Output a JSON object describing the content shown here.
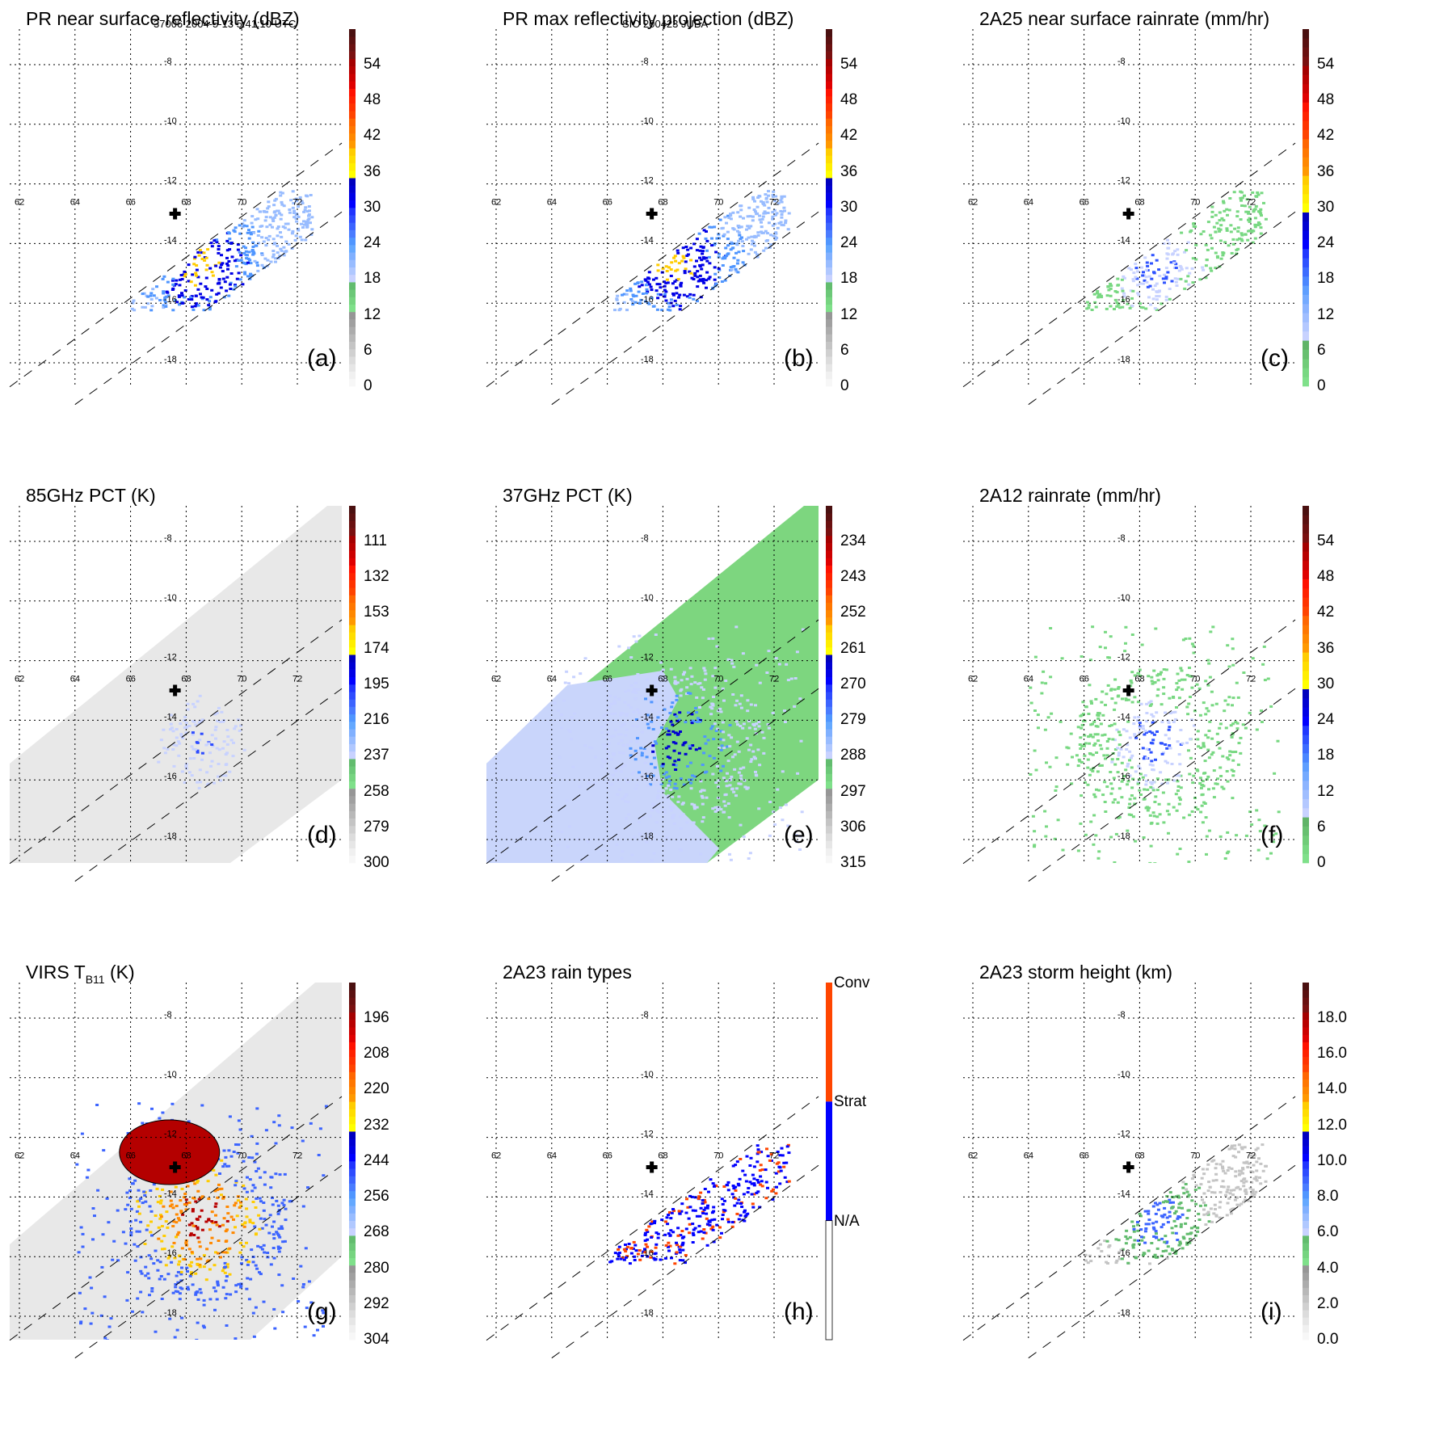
{
  "header": {
    "left": "37006 2004-5-13 5:41:10 UTC",
    "center": "SIO 200423 JUBA"
  },
  "chart_data": [
    {
      "id": "a",
      "type": "heatmap",
      "title": "PR near surface reflectivity (dBZ)",
      "panel_label": "(a)",
      "field": "reflectivity",
      "contours": false,
      "background": "white",
      "swath": "PR",
      "colorbar": {
        "ticks": [
          "54",
          "48",
          "42",
          "36",
          "30",
          "24",
          "18",
          "12",
          "6",
          "0"
        ],
        "range": [
          0,
          60
        ],
        "scheme": "dbz"
      },
      "xlabels": [
        "62",
        "64",
        "66",
        "68",
        "70",
        "72"
      ],
      "ylabels": [
        "-8",
        "-10",
        "-12",
        "-14",
        "-16",
        "-18"
      ]
    },
    {
      "id": "b",
      "type": "heatmap",
      "title": "PR max reflectivity projection (dBZ)",
      "panel_label": "(b)",
      "field": "reflectivity",
      "contours": true,
      "background": "white",
      "swath": "PR",
      "colorbar": {
        "ticks": [
          "54",
          "48",
          "42",
          "36",
          "30",
          "24",
          "18",
          "12",
          "6",
          "0"
        ],
        "range": [
          0,
          60
        ],
        "scheme": "dbz"
      },
      "xlabels": [
        "62",
        "64",
        "66",
        "68",
        "70",
        "72"
      ],
      "ylabels": [
        "-8",
        "-10",
        "-12",
        "-14",
        "-16",
        "-18"
      ]
    },
    {
      "id": "c",
      "type": "heatmap",
      "title": "2A25 near surface rainrate (mm/hr)",
      "panel_label": "(c)",
      "field": "rainrate",
      "contours": true,
      "background": "white",
      "swath": "PR",
      "colorbar": {
        "ticks": [
          "54",
          "48",
          "42",
          "36",
          "30",
          "24",
          "18",
          "12",
          "6",
          "0"
        ],
        "range": [
          0,
          60
        ],
        "scheme": "rain"
      },
      "xlabels": [
        "62",
        "64",
        "66",
        "68",
        "70",
        "72"
      ],
      "ylabels": [
        "-8",
        "-10",
        "-12",
        "-14",
        "-16",
        "-18"
      ]
    },
    {
      "id": "d",
      "type": "heatmap",
      "title": "85GHz PCT (K)",
      "panel_label": "(d)",
      "field": "pct85",
      "contours": true,
      "background": "gray-swath",
      "swath": "TMI",
      "colorbar": {
        "ticks": [
          "111",
          "132",
          "153",
          "174",
          "195",
          "216",
          "237",
          "258",
          "279",
          "300"
        ],
        "range": [
          90,
          300
        ],
        "scheme": "dbz"
      },
      "xlabels": [
        "62",
        "64",
        "66",
        "68",
        "70",
        "72"
      ],
      "ylabels": [
        "-8",
        "-10",
        "-12",
        "-14",
        "-16",
        "-18"
      ]
    },
    {
      "id": "e",
      "type": "heatmap",
      "title": "37GHz PCT (K)",
      "panel_label": "(e)",
      "field": "pct37",
      "contours": false,
      "background": "green-swath",
      "swath": "TMI",
      "colorbar": {
        "ticks": [
          "234",
          "243",
          "252",
          "261",
          "270",
          "279",
          "288",
          "297",
          "306",
          "315"
        ],
        "range": [
          225,
          315
        ],
        "scheme": "dbz"
      },
      "xlabels": [
        "62",
        "64",
        "66",
        "68",
        "70",
        "72"
      ],
      "ylabels": [
        "-8",
        "-10",
        "-12",
        "-14",
        "-16",
        "-18"
      ]
    },
    {
      "id": "f",
      "type": "heatmap",
      "title": "2A12 rainrate (mm/hr)",
      "panel_label": "(f)",
      "field": "rain2a12",
      "contours": true,
      "background": "white",
      "swath": "TMI",
      "colorbar": {
        "ticks": [
          "54",
          "48",
          "42",
          "36",
          "30",
          "24",
          "18",
          "12",
          "6",
          "0"
        ],
        "range": [
          0,
          60
        ],
        "scheme": "rain"
      },
      "xlabels": [
        "62",
        "64",
        "66",
        "68",
        "70",
        "72"
      ],
      "ylabels": [
        "-8",
        "-10",
        "-12",
        "-14",
        "-16",
        "-18"
      ]
    },
    {
      "id": "g",
      "type": "heatmap",
      "title": "VIRS T",
      "title_sub": "B11",
      "title_suffix": " (K)",
      "panel_label": "(g)",
      "field": "virs",
      "contours": true,
      "background": "gray-swath",
      "swath": "VIRS",
      "colorbar": {
        "ticks": [
          "196",
          "208",
          "220",
          "232",
          "244",
          "256",
          "268",
          "280",
          "292",
          "304"
        ],
        "range": [
          184,
          304
        ],
        "scheme": "dbz"
      },
      "xlabels": [
        "62",
        "64",
        "66",
        "68",
        "70",
        "72"
      ],
      "ylabels": [
        "-8",
        "-10",
        "-12",
        "-14",
        "-16",
        "-18"
      ]
    },
    {
      "id": "h",
      "type": "heatmap",
      "title": "2A23 rain types",
      "panel_label": "(h)",
      "field": "raintype",
      "contours": false,
      "background": "white",
      "swath": "PR",
      "colorbar": {
        "ticks": [
          "Conv",
          "Strat",
          "N/A"
        ],
        "categories": [
          {
            "name": "Conv",
            "color": "#ff4500"
          },
          {
            "name": "Strat",
            "color": "#0000ff"
          },
          {
            "name": "N/A",
            "color": "#ffffff"
          }
        ],
        "scheme": "categorical"
      },
      "xlabels": [
        "62",
        "64",
        "66",
        "68",
        "70",
        "72"
      ],
      "ylabels": [
        "-8",
        "-10",
        "-12",
        "-14",
        "-16",
        "-18"
      ]
    },
    {
      "id": "i",
      "type": "heatmap",
      "title": "2A23 storm height (km)",
      "panel_label": "(i)",
      "field": "stormheight",
      "contours": false,
      "background": "white",
      "swath": "PR",
      "colorbar": {
        "ticks": [
          "18.0",
          "16.0",
          "14.0",
          "12.0",
          "10.0",
          "8.0",
          "6.0",
          "4.0",
          "2.0",
          "0.0"
        ],
        "range": [
          0,
          20
        ],
        "scheme": "dbz"
      },
      "xlabels": [
        "62",
        "64",
        "66",
        "68",
        "70",
        "72"
      ],
      "ylabels": [
        "-8",
        "-10",
        "-12",
        "-14",
        "-16",
        "-18"
      ]
    }
  ],
  "storm_center": {
    "lon": 67.6,
    "lat": -13.0,
    "marker": "plus-icon"
  },
  "axes": {
    "lon_range": [
      61.6,
      73.5
    ],
    "lat_range": [
      -7.0,
      -19.0
    ],
    "grid": true,
    "lon_step": 2,
    "lat_step": 2
  },
  "colormaps": {
    "dbz": [
      "#f7f7f7",
      "#f0f0f0",
      "#e6e6e6",
      "#dcdcdc",
      "#d0d0d0",
      "#c4c4c4",
      "#b8b8b8",
      "#acacac",
      "#a0a0a0",
      "#969696",
      "#7fe08a",
      "#76d480",
      "#6cc878",
      "#62bc6e",
      "#c8d2ff",
      "#b0c8ff",
      "#98bcff",
      "#80b0ff",
      "#64a8ff",
      "#5096ff",
      "#4a7cff",
      "#3c64ff",
      "#2e4cff",
      "#2034ff",
      "#0000ff",
      "#0000e6",
      "#0000d2",
      "#0000be",
      "#ffff00",
      "#ffee00",
      "#ffdd00",
      "#ffcc00",
      "#ff9900",
      "#ff8800",
      "#ff7700",
      "#ff6600",
      "#ff4400",
      "#ff3300",
      "#ff2200",
      "#ff1100",
      "#e00000",
      "#cc0000",
      "#b80000",
      "#a40000",
      "#7a1010",
      "#6a1010",
      "#5a1010",
      "#4a1010"
    ],
    "rain": [
      "#7fe08a",
      "#78d882",
      "#70cc78",
      "#68c070",
      "#60b468",
      "#c8d2ff",
      "#b4c8ff",
      "#a0beff",
      "#8cb4ff",
      "#74aaff",
      "#5e9eff",
      "#4a86ff",
      "#3c6cff",
      "#2e52ff",
      "#2038ff",
      "#0000ff",
      "#0000e6",
      "#0000d2",
      "#0000be",
      "#ffff00",
      "#ffee00",
      "#ffdd00",
      "#ffcc00",
      "#ff9900",
      "#ff8800",
      "#ff7700",
      "#ff6600",
      "#ff4400",
      "#ff3300",
      "#ff2200",
      "#ff1100",
      "#e00000",
      "#cc0000",
      "#b80000",
      "#a40000",
      "#7a1010",
      "#6a1010",
      "#5a1010",
      "#4a1010"
    ]
  }
}
